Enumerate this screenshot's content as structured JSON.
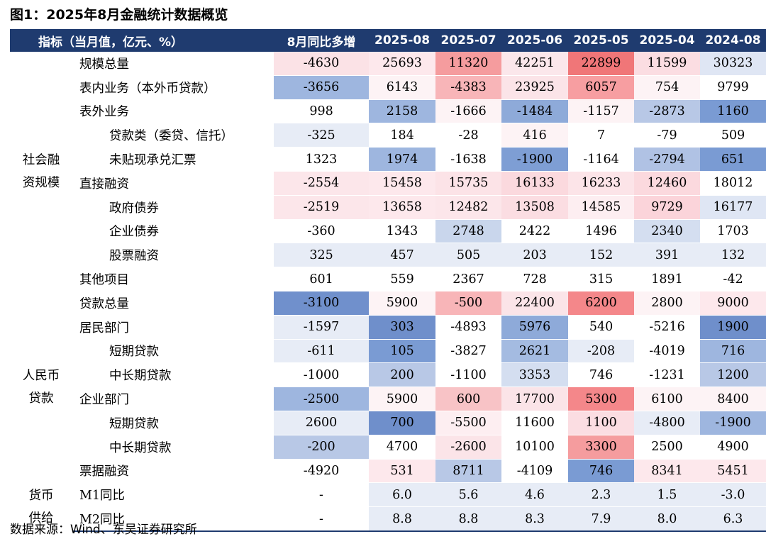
{
  "title": "图1：2025年8月金融统计数据概览",
  "source": "数据来源：Wind、东吴证券研究所",
  "header": [
    "指标（当月值，亿元、%）",
    "8月同比多增",
    "2025-08",
    "2025-07",
    "2025-06",
    "2025-05",
    "2025-04",
    "2024-08"
  ],
  "groups": [
    {
      "label": "社会融资规模",
      "lines": [
        "社会融",
        "资规模"
      ],
      "start": 0,
      "span": 10
    },
    {
      "label": "人民币贷款",
      "lines": [
        "人民币",
        "贷款"
      ],
      "start": 10,
      "span": 8
    },
    {
      "label": "货币供给",
      "lines": [
        "货币",
        "供给"
      ],
      "start": 18,
      "span": 2
    }
  ],
  "rows": [
    {
      "label": "规模总量",
      "level": 0,
      "values": [
        "-4630",
        "25693",
        "11320",
        "42251",
        "22899",
        "11599",
        "30323"
      ],
      "colors": [
        "#fbe2e6",
        "#fde8ec",
        "#f59c9e",
        "#fbe7eb",
        "#f07678",
        "#fbdde2",
        "#dfe6f4"
      ]
    },
    {
      "label": "表内业务（本外币贷款）",
      "level": 0,
      "values": [
        "-3656",
        "6143",
        "-4383",
        "23925",
        "6057",
        "754",
        "9799"
      ],
      "colors": [
        "#9eb6df",
        "#fdf3f5",
        "#f8b5b8",
        "#fbe4e8",
        "#f79ea1",
        "#fdf3f5",
        "#ffffff"
      ]
    },
    {
      "label": "表外业务",
      "level": 0,
      "values": [
        "998",
        "2158",
        "-1666",
        "-1484",
        "-1157",
        "-2873",
        "1160"
      ],
      "colors": [
        "#ffffff",
        "#9eb6df",
        "#fdf3f5",
        "#8eaad9",
        "#fdf3f5",
        "#b8c8e6",
        "#7a9bd3"
      ]
    },
    {
      "label": "贷款类（委贷、信托）",
      "level": 2,
      "values": [
        "-325",
        "184",
        "-28",
        "416",
        "7",
        "-79",
        "509"
      ],
      "colors": [
        "#e7ecf6",
        "#ffffff",
        "#ffffff",
        "#fdf3f5",
        "#ffffff",
        "#ffffff",
        "#ffffff"
      ]
    },
    {
      "label": "未贴现承兑汇票",
      "level": 2,
      "values": [
        "1323",
        "1974",
        "-1638",
        "-1900",
        "-1164",
        "-2794",
        "651"
      ],
      "colors": [
        "#ffffff",
        "#9eb6df",
        "#ffffff",
        "#7e9ed4",
        "#ffffff",
        "#b0c2e4",
        "#7a9bd3"
      ]
    },
    {
      "label": "直接融资",
      "level": 0,
      "values": [
        "-2554",
        "15458",
        "15735",
        "16133",
        "16233",
        "12460",
        "18012"
      ],
      "colors": [
        "#fce6ea",
        "#fde8ec",
        "#fce3e7",
        "#fbd9de",
        "#fce4e8",
        "#fbd9de",
        "#ffffff"
      ]
    },
    {
      "label": "政府债券",
      "level": 1,
      "values": [
        "-2519",
        "13658",
        "12482",
        "13508",
        "14585",
        "9729",
        "16177"
      ],
      "colors": [
        "#fce6ea",
        "#fde8ec",
        "#fce6ea",
        "#fbdde2",
        "#fdeef1",
        "#fbd4da",
        "#dfe6f4"
      ]
    },
    {
      "label": "企业债券",
      "level": 1,
      "values": [
        "-360",
        "1343",
        "2748",
        "2422",
        "1496",
        "2340",
        "1703"
      ],
      "colors": [
        "#ffffff",
        "#ffffff",
        "#c9d6ec",
        "#ffffff",
        "#ffffff",
        "#d4def0",
        "#ffffff"
      ]
    },
    {
      "label": "股票融资",
      "level": 1,
      "values": [
        "325",
        "457",
        "505",
        "203",
        "152",
        "391",
        "132"
      ],
      "colors": [
        "#e7ecf6",
        "#e7ecf6",
        "#e7ecf6",
        "#e7ecf6",
        "#e7ecf6",
        "#e7ecf6",
        "#e7ecf6"
      ]
    },
    {
      "label": "其他项目",
      "level": 0,
      "values": [
        "601",
        "559",
        "2367",
        "728",
        "315",
        "1891",
        "-42"
      ],
      "colors": [
        "#ffffff",
        "#ffffff",
        "#ffffff",
        "#ffffff",
        "#ffffff",
        "#ffffff",
        "#ffffff"
      ]
    },
    {
      "label": "贷款总量",
      "level": 0,
      "values": [
        "-3100",
        "5900",
        "-500",
        "22400",
        "6200",
        "2800",
        "9000"
      ],
      "colors": [
        "#7090cc",
        "#fdf3f5",
        "#f8b5b8",
        "#fbe4e8",
        "#f4878a",
        "#fdf3f5",
        "#fde8ec"
      ]
    },
    {
      "label": "居民部门",
      "level": 1,
      "values": [
        "-1597",
        "303",
        "-4893",
        "5976",
        "540",
        "-5216",
        "1900"
      ],
      "colors": [
        "#e7ecf6",
        "#6f8fcb",
        "#ffffff",
        "#8eaad9",
        "#ffffff",
        "#ffffff",
        "#6f8fcb"
      ]
    },
    {
      "label": "短期贷款",
      "level": 2,
      "values": [
        "-611",
        "105",
        "-3827",
        "2621",
        "-208",
        "-4019",
        "716"
      ],
      "colors": [
        "#e7ecf6",
        "#7a9bd3",
        "#ffffff",
        "#a4bbe1",
        "#e7ecf6",
        "#ffffff",
        "#9eb6df"
      ]
    },
    {
      "label": "中长期贷款",
      "level": 2,
      "values": [
        "-1000",
        "200",
        "-1100",
        "3353",
        "746",
        "-1231",
        "1200"
      ],
      "colors": [
        "#ffffff",
        "#b8c8e6",
        "#ffffff",
        "#d4def0",
        "#ffffff",
        "#ffffff",
        "#b8c8e6"
      ]
    },
    {
      "label": "企业部门",
      "level": 1,
      "values": [
        "-2500",
        "5900",
        "600",
        "17700",
        "5300",
        "6100",
        "8400"
      ],
      "colors": [
        "#9eb6df",
        "#fdf3f5",
        "#f8c3c6",
        "#fbe4e8",
        "#f4878a",
        "#fdf3f5",
        "#fdf3f5"
      ]
    },
    {
      "label": "短期贷款",
      "level": 2,
      "values": [
        "2600",
        "700",
        "-5500",
        "11600",
        "1100",
        "-4800",
        "-1900"
      ],
      "colors": [
        "#e7ecf6",
        "#6f8fcb",
        "#fdeef1",
        "#ffffff",
        "#fbdde2",
        "#e7ecf6",
        "#9eb6df"
      ]
    },
    {
      "label": "中长期贷款",
      "level": 2,
      "values": [
        "-200",
        "4700",
        "-2600",
        "10100",
        "3300",
        "2500",
        "4900"
      ],
      "colors": [
        "#b8c8e6",
        "#ffffff",
        "#fbe4e8",
        "#ffffff",
        "#f59c9e",
        "#ffffff",
        "#ffffff"
      ]
    },
    {
      "label": "票据融资",
      "level": 1,
      "values": [
        "-4920",
        "531",
        "8711",
        "-4109",
        "746",
        "8341",
        "5451"
      ],
      "colors": [
        "#ffffff",
        "#fde8ec",
        "#b8c8e6",
        "#ffffff",
        "#7a9bd3",
        "#fde8ec",
        "#fde8ec"
      ]
    },
    {
      "label": "M1同比",
      "level": 0,
      "values": [
        "-",
        "6.0",
        "5.6",
        "4.6",
        "2.3",
        "1.5",
        "-3.0"
      ],
      "colors": [
        "#ffffff",
        "#e7ecf6",
        "#e7ecf6",
        "#e7ecf6",
        "#e7ecf6",
        "#e7ecf6",
        "#e7ecf6"
      ]
    },
    {
      "label": "M2同比",
      "level": 0,
      "values": [
        "-",
        "8.8",
        "8.8",
        "8.3",
        "7.9",
        "8.0",
        "6.3"
      ],
      "colors": [
        "#ffffff",
        "#e7ecf6",
        "#e7ecf6",
        "#e7ecf6",
        "#e7ecf6",
        "#e7ecf6",
        "#e7ecf6"
      ]
    }
  ]
}
